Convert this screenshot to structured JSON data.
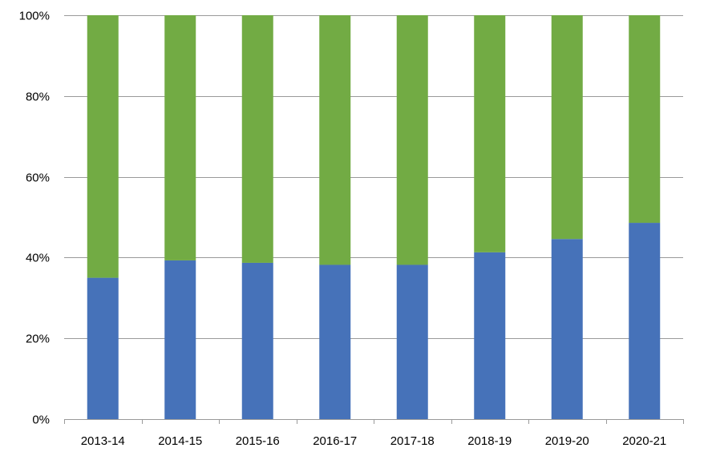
{
  "chart_data": {
    "type": "bar",
    "stacked": true,
    "normalized": true,
    "categories": [
      "2013-14",
      "2014-15",
      "2015-16",
      "2016-17",
      "2017-18",
      "2018-19",
      "2019-20",
      "2020-21"
    ],
    "series": [
      {
        "color": "#4672b9",
        "values": [
          35,
          39.3,
          38.7,
          38.2,
          38.2,
          41.3,
          44.6,
          48.6
        ]
      },
      {
        "color": "#72ab44",
        "values": [
          65,
          60.7,
          61.3,
          61.8,
          61.8,
          58.7,
          55.4,
          51.4
        ]
      }
    ],
    "y_ticks": [
      "0%",
      "20%",
      "40%",
      "60%",
      "80%",
      "100%"
    ],
    "ylim": [
      0,
      100
    ],
    "grid": true,
    "legend": "none",
    "title": "",
    "xlabel": "",
    "ylabel": ""
  }
}
